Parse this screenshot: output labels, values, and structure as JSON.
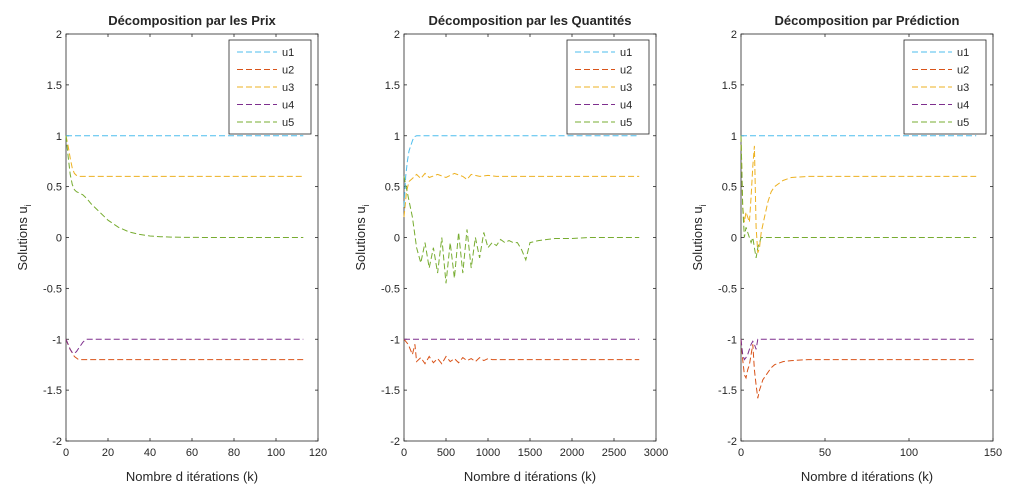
{
  "colors": {
    "u1": "#4DBEEE",
    "u2": "#D95319",
    "u3": "#EDB120",
    "u4": "#7E2F8E",
    "u5": "#77AC30"
  },
  "chart_data": [
    {
      "type": "line",
      "title": "Décomposition par les Prix",
      "xlabel": "Nombre d itérations (k)",
      "ylabel": "Solutions u",
      "ylabel_sub": "i",
      "xlim": [
        0,
        120
      ],
      "ylim": [
        -2,
        2
      ],
      "xticks": [
        0,
        20,
        40,
        60,
        80,
        100,
        120
      ],
      "yticks": [
        -2,
        -1.5,
        -1,
        -0.5,
        0,
        0.5,
        1,
        1.5,
        2
      ],
      "legend": "top-right",
      "series": [
        {
          "name": "u1",
          "x": [
            0,
            113
          ],
          "y": [
            1.0,
            1.0
          ]
        },
        {
          "name": "u2",
          "x": [
            0,
            2,
            4,
            6,
            8,
            10,
            15,
            20,
            113
          ],
          "y": [
            -1.0,
            -1.1,
            -1.17,
            -1.2,
            -1.2,
            -1.2,
            -1.2,
            -1.2,
            -1.2
          ]
        },
        {
          "name": "u3",
          "x": [
            0,
            1,
            2,
            3,
            4,
            5,
            6,
            8,
            10,
            15,
            113
          ],
          "y": [
            1.0,
            0.9,
            0.78,
            0.68,
            0.63,
            0.61,
            0.6,
            0.6,
            0.6,
            0.6,
            0.6
          ]
        },
        {
          "name": "u4",
          "x": [
            0,
            1,
            2,
            3,
            4,
            5,
            6,
            7,
            8,
            9,
            10,
            113
          ],
          "y": [
            -1.0,
            -1.05,
            -1.1,
            -1.13,
            -1.14,
            -1.12,
            -1.09,
            -1.06,
            -1.03,
            -1.01,
            -1.0,
            -1.0
          ]
        },
        {
          "name": "u5",
          "x": [
            0,
            1,
            2,
            3,
            4,
            5,
            6,
            8,
            10,
            12,
            15,
            20,
            25,
            30,
            35,
            40,
            45,
            50,
            55,
            60,
            70,
            80,
            90,
            100,
            113
          ],
          "y": [
            1.0,
            0.8,
            0.62,
            0.52,
            0.47,
            0.45,
            0.44,
            0.42,
            0.38,
            0.33,
            0.27,
            0.17,
            0.1,
            0.055,
            0.03,
            0.015,
            0.008,
            0.004,
            0.002,
            0.001,
            0.0,
            0.0,
            0.0,
            0.0,
            0.0
          ]
        }
      ]
    },
    {
      "type": "line",
      "title": "Décomposition par les Quantités",
      "xlabel": "Nombre d itérations (k)",
      "ylabel": "Solutions u",
      "ylabel_sub": "i",
      "xlim": [
        0,
        3000
      ],
      "ylim": [
        -2,
        2
      ],
      "xticks": [
        0,
        500,
        1000,
        1500,
        2000,
        2500,
        3000
      ],
      "yticks": [
        -2,
        -1.5,
        -1,
        -0.5,
        0,
        0.5,
        1,
        1.5,
        2
      ],
      "legend": "top-right",
      "series": [
        {
          "name": "u1",
          "x": [
            0,
            20,
            40,
            60,
            80,
            100,
            120,
            150,
            2800
          ],
          "y": [
            0.3,
            0.6,
            0.75,
            0.85,
            0.9,
            0.95,
            0.99,
            1.0,
            1.0
          ]
        },
        {
          "name": "u2",
          "x": [
            0,
            50,
            100,
            130,
            150,
            200,
            250,
            300,
            350,
            400,
            450,
            500,
            550,
            600,
            650,
            700,
            750,
            800,
            850,
            900,
            950,
            1000,
            1050,
            1100,
            1300,
            2800
          ],
          "y": [
            -1.0,
            -1.05,
            -1.15,
            -1.05,
            -1.22,
            -1.18,
            -1.24,
            -1.17,
            -1.23,
            -1.19,
            -1.24,
            -1.17,
            -1.22,
            -1.19,
            -1.23,
            -1.18,
            -1.21,
            -1.19,
            -1.22,
            -1.18,
            -1.21,
            -1.19,
            -1.2,
            -1.2,
            -1.2,
            -1.2
          ]
        },
        {
          "name": "u3",
          "x": [
            0,
            30,
            60,
            100,
            150,
            200,
            250,
            300,
            400,
            500,
            600,
            700,
            750,
            800,
            900,
            1000,
            1100,
            1200,
            2800
          ],
          "y": [
            0.2,
            0.45,
            0.55,
            0.58,
            0.62,
            0.58,
            0.63,
            0.59,
            0.62,
            0.59,
            0.63,
            0.6,
            0.57,
            0.62,
            0.6,
            0.61,
            0.6,
            0.6,
            0.6
          ]
        },
        {
          "name": "u4",
          "x": [
            0,
            50,
            100,
            150,
            2800
          ],
          "y": [
            -1.0,
            -1.0,
            -1.0,
            -1.0,
            -1.0
          ]
        },
        {
          "name": "u5",
          "x": [
            0,
            50,
            100,
            150,
            200,
            250,
            300,
            350,
            400,
            450,
            500,
            550,
            600,
            650,
            700,
            750,
            800,
            850,
            900,
            950,
            1000,
            1050,
            1100,
            1150,
            1200,
            1250,
            1300,
            1350,
            1400,
            1450,
            1500,
            1600,
            1700,
            1800,
            2000,
            2200,
            2500,
            2800
          ],
          "y": [
            0.6,
            0.4,
            0.2,
            -0.1,
            -0.25,
            -0.05,
            -0.3,
            -0.1,
            -0.35,
            0.0,
            -0.45,
            -0.05,
            -0.4,
            0.05,
            -0.35,
            0.08,
            -0.3,
            0.0,
            -0.2,
            0.05,
            -0.1,
            -0.05,
            -0.08,
            -0.02,
            -0.05,
            -0.03,
            -0.05,
            -0.05,
            -0.12,
            -0.22,
            -0.05,
            -0.03,
            -0.02,
            -0.01,
            -0.01,
            0.0,
            0.0,
            0.0
          ]
        }
      ]
    },
    {
      "type": "line",
      "title": "Décomposition par Prédiction",
      "xlabel": "Nombre d itérations (k)",
      "ylabel": "Solutions u",
      "ylabel_sub": "i",
      "xlim": [
        0,
        150
      ],
      "ylim": [
        -2,
        2
      ],
      "xticks": [
        0,
        50,
        100,
        150
      ],
      "yticks": [
        -2,
        -1.5,
        -1,
        -0.5,
        0,
        0.5,
        1,
        1.5,
        2
      ],
      "legend": "top-right",
      "series": [
        {
          "name": "u1",
          "x": [
            0,
            140
          ],
          "y": [
            1.0,
            1.0
          ]
        },
        {
          "name": "u2",
          "x": [
            0,
            1,
            2,
            3,
            4,
            5,
            6,
            7,
            8,
            9,
            10,
            11,
            12,
            13,
            15,
            18,
            20,
            25,
            30,
            40,
            50,
            140
          ],
          "y": [
            -1.0,
            -1.2,
            -1.35,
            -1.38,
            -1.3,
            -1.25,
            -1.15,
            -1.05,
            -1.3,
            -1.45,
            -1.58,
            -1.5,
            -1.45,
            -1.4,
            -1.35,
            -1.28,
            -1.25,
            -1.22,
            -1.21,
            -1.2,
            -1.2,
            -1.2
          ]
        },
        {
          "name": "u3",
          "x": [
            0,
            1,
            2,
            3,
            4,
            5,
            6,
            7,
            8,
            9,
            10,
            11,
            12,
            14,
            16,
            18,
            20,
            25,
            30,
            40,
            140
          ],
          "y": [
            1.0,
            0.3,
            0.15,
            0.25,
            0.2,
            0.15,
            0.4,
            0.7,
            0.9,
            0.1,
            -0.15,
            -0.1,
            0.05,
            0.2,
            0.35,
            0.45,
            0.5,
            0.56,
            0.59,
            0.6,
            0.6
          ]
        },
        {
          "name": "u4",
          "x": [
            0,
            1,
            2,
            3,
            4,
            5,
            6,
            7,
            8,
            9,
            10,
            140
          ],
          "y": [
            -1.0,
            -1.15,
            -1.2,
            -1.18,
            -1.15,
            -1.1,
            -1.05,
            -1.02,
            -1.05,
            -1.1,
            -1.0,
            -1.0
          ]
        },
        {
          "name": "u5",
          "x": [
            0,
            1,
            2,
            3,
            4,
            5,
            6,
            7,
            8,
            9,
            10,
            11,
            12,
            15,
            140
          ],
          "y": [
            1.0,
            0.3,
            0.0,
            0.1,
            0.05,
            0.0,
            -0.05,
            0.0,
            -0.1,
            -0.2,
            -0.1,
            -0.05,
            0.0,
            0.0,
            0.0
          ]
        }
      ]
    }
  ]
}
